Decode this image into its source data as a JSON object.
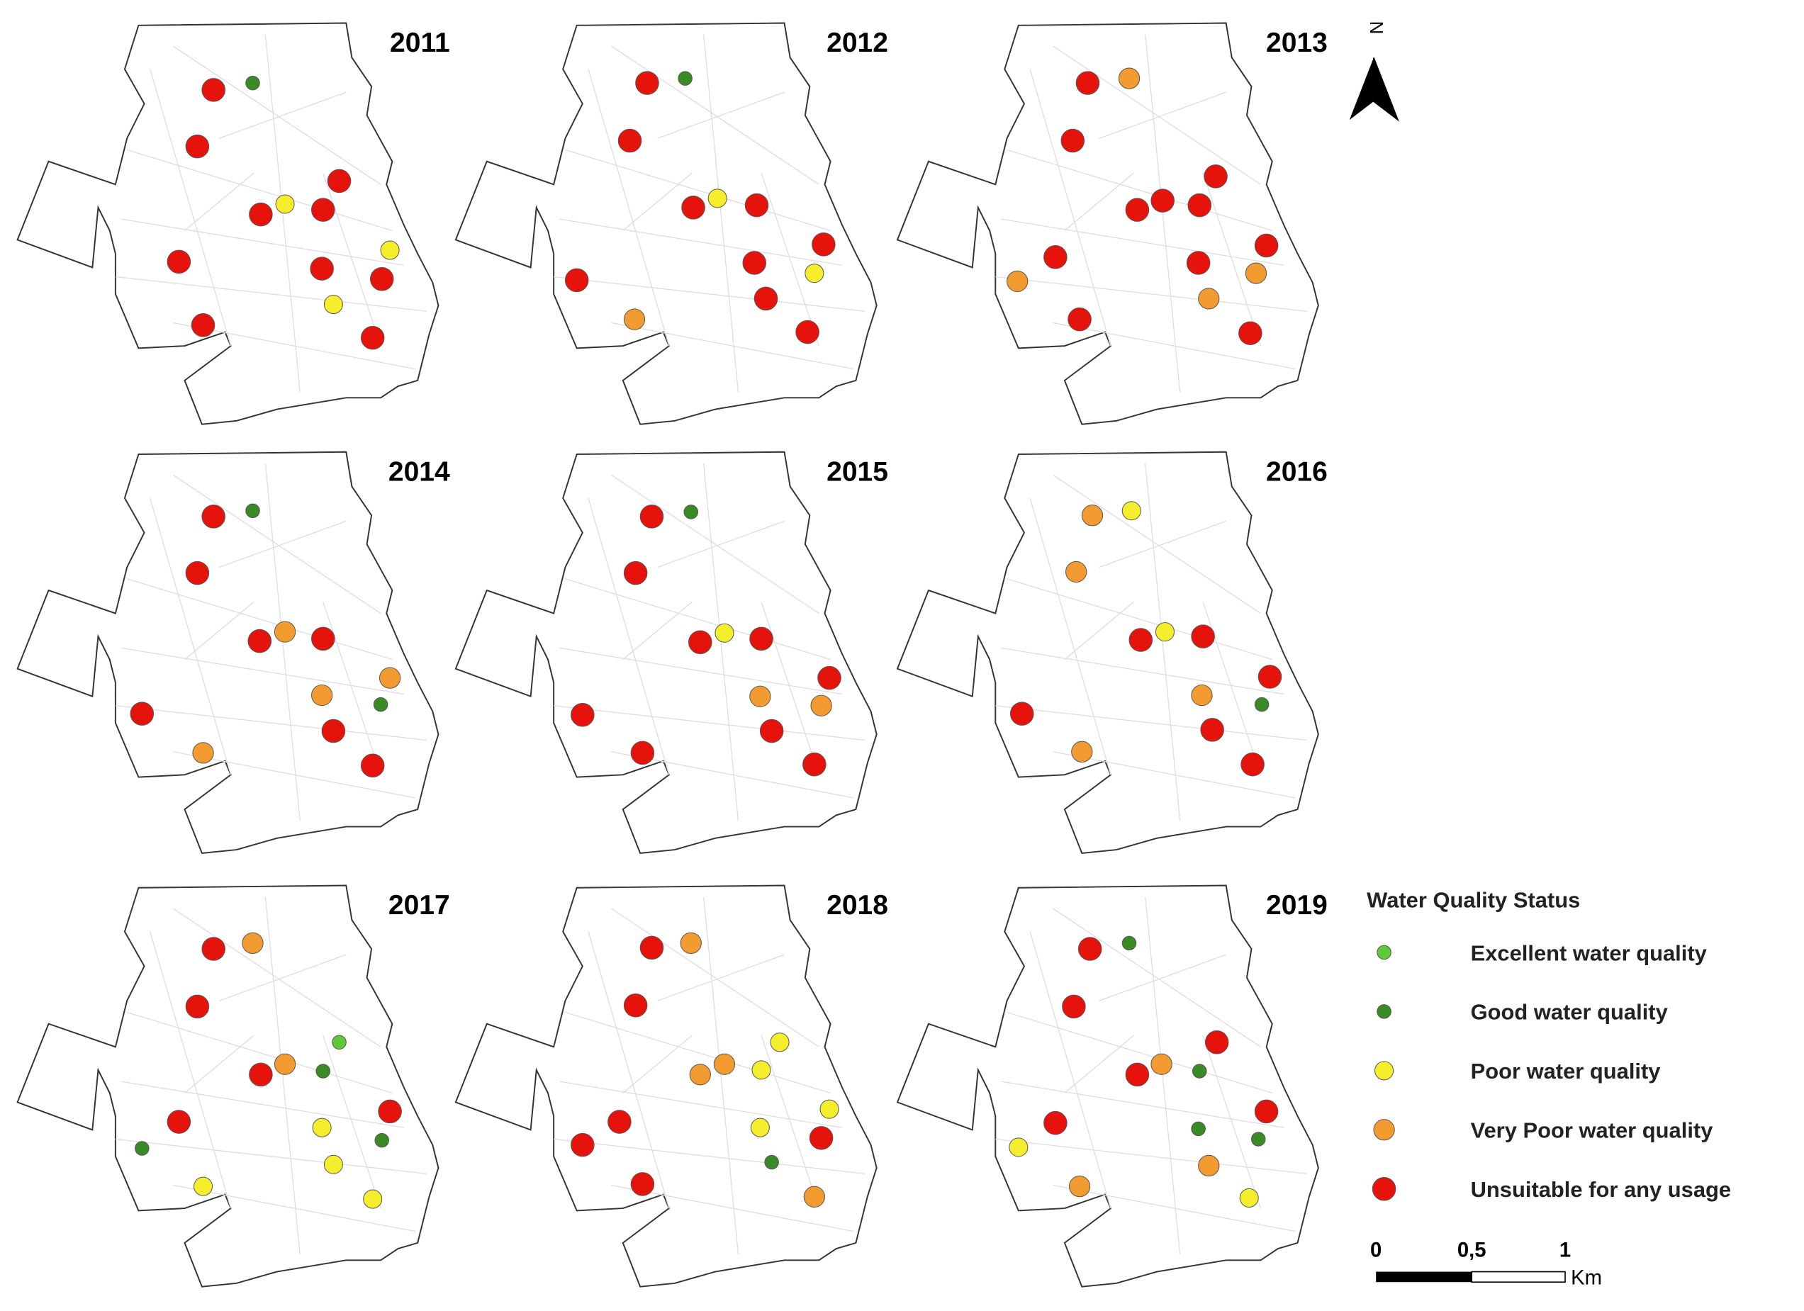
{
  "panels": [
    {
      "title": "2011"
    },
    {
      "title": "2012"
    },
    {
      "title": "2013"
    },
    {
      "title": "2014"
    },
    {
      "title": "2015"
    },
    {
      "title": "2016"
    },
    {
      "title": "2017"
    },
    {
      "title": "2018"
    },
    {
      "title": "2019"
    }
  ],
  "north": "N",
  "legend": {
    "title": "Water Quality Status",
    "items": [
      {
        "label": "Excellent water quality",
        "color": "#5cc935"
      },
      {
        "label": "Good water quality",
        "color": "#3a8a25"
      },
      {
        "label": "Poor water quality",
        "color": "#f4ee2c"
      },
      {
        "label": "Very Poor water quality",
        "color": "#f29b30"
      },
      {
        "label": "Unsuitable for any usage",
        "color": "#e6130d"
      }
    ]
  },
  "scale_bar": {
    "labels": [
      "0",
      "0,5",
      "1"
    ],
    "unit": "Km"
  }
}
